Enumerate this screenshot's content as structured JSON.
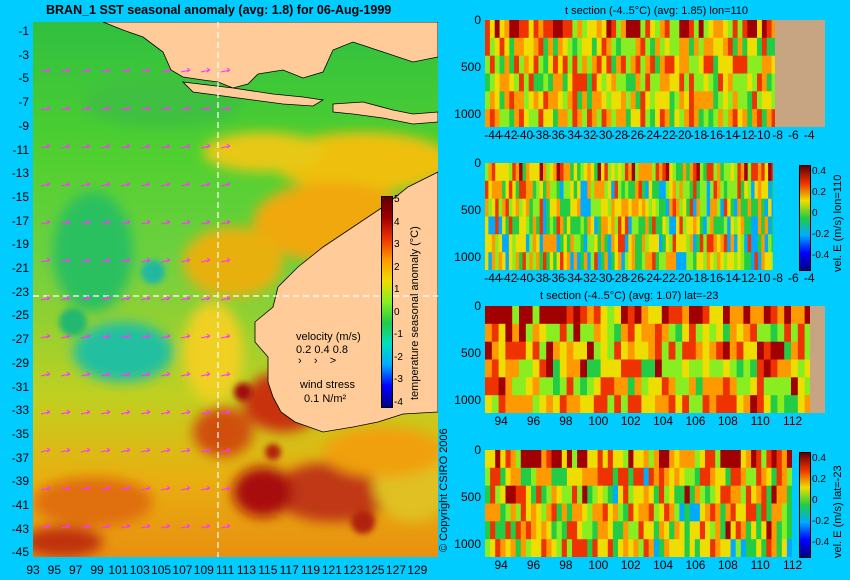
{
  "colors": {
    "background": "#00ccff",
    "land": "#ffcc99",
    "topography": "#c8a582",
    "vector_arrow": "#ff33ff",
    "dashed_line": "#ffffff",
    "scale": [
      "#000080",
      "#0000ff",
      "#00aaff",
      "#00e0c0",
      "#22cc44",
      "#88ee22",
      "#eedd00",
      "#ff9900",
      "#ee3300",
      "#a00000",
      "#600000"
    ]
  },
  "main_map": {
    "title": "BRAN_1  SST seasonal anomaly  (avg: 1.8) for 06-Aug-1999",
    "colorbar_label": "temperature seasonal anomaly (°C)",
    "colorbar_ticks": [
      "5",
      "4",
      "3",
      "2",
      "1",
      "0",
      "-1",
      "-2",
      "-3",
      "-4"
    ],
    "velocity_legend_title": "velocity (m/s)",
    "velocity_legend_values": "0.2 0.4 0.8",
    "wind_stress_title": "wind stress",
    "wind_stress_value": "0.1 N/m²",
    "copyright": "© Copyright CSIRO 2006",
    "lat_ticks": [
      "-1",
      "-3",
      "-5",
      "-7",
      "-9",
      "-11",
      "-13",
      "-15",
      "-17",
      "-19",
      "-21",
      "-23",
      "-25",
      "-27",
      "-29",
      "-31",
      "-33",
      "-35",
      "-37",
      "-39",
      "-41",
      "-43",
      "-45"
    ],
    "lon_ticks": [
      "93",
      "95",
      "97",
      "99",
      "101",
      "103",
      "105",
      "107",
      "109",
      "111",
      "113",
      "115",
      "117",
      "119",
      "121",
      "123",
      "125",
      "127",
      "129"
    ],
    "section_lines": {
      "lon": 110,
      "lat": -23
    }
  },
  "chart_data": [
    {
      "type": "heatmap",
      "title": "BRAN_1  SST seasonal anomaly  (avg: 1.8) for 06-Aug-1999",
      "variable": "SST seasonal anomaly",
      "units": "°C",
      "avg": 1.8,
      "x_range": [
        93,
        130
      ],
      "y_range": [
        -45,
        0
      ],
      "color_range": [
        -4,
        5
      ]
    },
    {
      "type": "heatmap",
      "title": "t section (-4..5°C) (avg: 1.85) lon=110",
      "x_ticks": [
        "-44",
        "-42",
        "-40",
        "-38",
        "-36",
        "-34",
        "-32",
        "-30",
        "-28",
        "-26",
        "-24",
        "-22",
        "-20",
        "-18",
        "-16",
        "-14",
        "-12",
        "-10",
        "-8",
        "-6",
        "-4"
      ],
      "y_ticks": [
        "0",
        "500",
        "1000"
      ],
      "x_range": [
        -45,
        -2
      ],
      "y_range": [
        0,
        1050
      ],
      "avg": 1.85
    },
    {
      "type": "heatmap",
      "title": "",
      "colorbar_label": "vel. E (m/s) lon=110",
      "colorbar_ticks": [
        "0.4",
        "0.2",
        "0",
        "-0.2",
        "-0.4"
      ],
      "x_ticks": [
        "-44",
        "-42",
        "-40",
        "-38",
        "-36",
        "-34",
        "-32",
        "-30",
        "-28",
        "-26",
        "-24",
        "-22",
        "-20",
        "-18",
        "-16",
        "-14",
        "-12",
        "-10",
        "-8",
        "-6",
        "-4"
      ],
      "y_ticks": [
        "0",
        "500",
        "1000"
      ],
      "x_range": [
        -45,
        -2
      ],
      "y_range": [
        0,
        1050
      ],
      "color_range": [
        -0.5,
        0.5
      ]
    },
    {
      "type": "heatmap",
      "title": "t section (-4..5°C) (avg: 1.07) lat=-23",
      "x_ticks": [
        "94",
        "96",
        "98",
        "100",
        "102",
        "104",
        "106",
        "108",
        "110",
        "112"
      ],
      "y_ticks": [
        "0",
        "500",
        "1000"
      ],
      "x_range": [
        93,
        114
      ],
      "y_range": [
        0,
        1050
      ],
      "avg": 1.07
    },
    {
      "type": "heatmap",
      "title": "",
      "colorbar_label": "vel. E (m/s) lat=-23",
      "colorbar_ticks": [
        "0.4",
        "0.2",
        "0",
        "-0.2",
        "-0.4"
      ],
      "x_ticks": [
        "94",
        "96",
        "98",
        "100",
        "102",
        "104",
        "106",
        "108",
        "110",
        "112"
      ],
      "y_ticks": [
        "0",
        "500",
        "1000"
      ],
      "x_range": [
        93,
        114
      ],
      "y_range": [
        0,
        1050
      ],
      "color_range": [
        -0.5,
        0.5
      ]
    }
  ]
}
